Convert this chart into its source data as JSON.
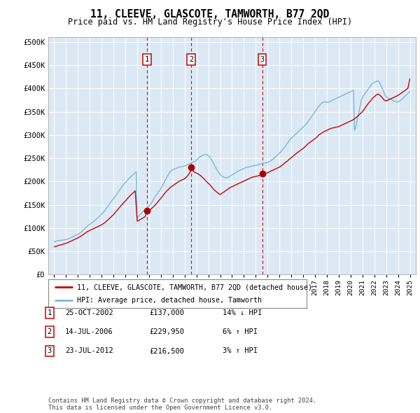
{
  "title": "11, CLEEVE, GLASCOTE, TAMWORTH, B77 2QD",
  "subtitle": "Price paid vs. HM Land Registry's House Price Index (HPI)",
  "red_line_label": "11, CLEEVE, GLASCOTE, TAMWORTH, B77 2QD (detached house)",
  "blue_line_label": "HPI: Average price, detached house, Tamworth",
  "footer": "Contains HM Land Registry data © Crown copyright and database right 2024.\nThis data is licensed under the Open Government Licence v3.0.",
  "sale_markers": [
    {
      "num": 1,
      "year": 2002.83,
      "price": 137000,
      "label": "25-OCT-2002",
      "amount": "£137,000",
      "pct": "14% ↓ HPI"
    },
    {
      "num": 2,
      "year": 2006.54,
      "price": 229950,
      "label": "14-JUL-2006",
      "amount": "£229,950",
      "pct": "6% ↑ HPI"
    },
    {
      "num": 3,
      "year": 2012.54,
      "price": 216500,
      "label": "23-JUL-2012",
      "amount": "£216,500",
      "pct": "3% ↑ HPI"
    }
  ],
  "ylim": [
    0,
    510000
  ],
  "yticks": [
    0,
    50000,
    100000,
    150000,
    200000,
    250000,
    300000,
    350000,
    400000,
    450000,
    500000
  ],
  "ytick_labels": [
    "£0",
    "£50K",
    "£100K",
    "£150K",
    "£200K",
    "£250K",
    "£300K",
    "£350K",
    "£400K",
    "£450K",
    "£500K"
  ],
  "xlim": [
    1994.5,
    2025.5
  ],
  "hpi_x": [
    1995.0,
    1995.08,
    1995.17,
    1995.25,
    1995.33,
    1995.42,
    1995.5,
    1995.58,
    1995.67,
    1995.75,
    1995.83,
    1995.92,
    1996.0,
    1996.08,
    1996.17,
    1996.25,
    1996.33,
    1996.42,
    1996.5,
    1996.58,
    1996.67,
    1996.75,
    1996.83,
    1996.92,
    1997.0,
    1997.08,
    1997.17,
    1997.25,
    1997.33,
    1997.42,
    1997.5,
    1997.58,
    1997.67,
    1997.75,
    1997.83,
    1997.92,
    1998.0,
    1998.08,
    1998.17,
    1998.25,
    1998.33,
    1998.42,
    1998.5,
    1998.58,
    1998.67,
    1998.75,
    1998.83,
    1998.92,
    1999.0,
    1999.08,
    1999.17,
    1999.25,
    1999.33,
    1999.42,
    1999.5,
    1999.58,
    1999.67,
    1999.75,
    1999.83,
    1999.92,
    2000.0,
    2000.08,
    2000.17,
    2000.25,
    2000.33,
    2000.42,
    2000.5,
    2000.58,
    2000.67,
    2000.75,
    2000.83,
    2000.92,
    2001.0,
    2001.08,
    2001.17,
    2001.25,
    2001.33,
    2001.42,
    2001.5,
    2001.58,
    2001.67,
    2001.75,
    2001.83,
    2001.92,
    2002.0,
    2002.08,
    2002.17,
    2002.25,
    2002.33,
    2002.42,
    2002.5,
    2002.58,
    2002.67,
    2002.75,
    2002.83,
    2002.92,
    2003.0,
    2003.08,
    2003.17,
    2003.25,
    2003.33,
    2003.42,
    2003.5,
    2003.58,
    2003.67,
    2003.75,
    2003.83,
    2003.92,
    2004.0,
    2004.08,
    2004.17,
    2004.25,
    2004.33,
    2004.42,
    2004.5,
    2004.58,
    2004.67,
    2004.75,
    2004.83,
    2004.92,
    2005.0,
    2005.08,
    2005.17,
    2005.25,
    2005.33,
    2005.42,
    2005.5,
    2005.58,
    2005.67,
    2005.75,
    2005.83,
    2005.92,
    2006.0,
    2006.08,
    2006.17,
    2006.25,
    2006.33,
    2006.42,
    2006.5,
    2006.58,
    2006.67,
    2006.75,
    2006.83,
    2006.92,
    2007.0,
    2007.08,
    2007.17,
    2007.25,
    2007.33,
    2007.42,
    2007.5,
    2007.58,
    2007.67,
    2007.75,
    2007.83,
    2007.92,
    2008.0,
    2008.08,
    2008.17,
    2008.25,
    2008.33,
    2008.42,
    2008.5,
    2008.58,
    2008.67,
    2008.75,
    2008.83,
    2008.92,
    2009.0,
    2009.08,
    2009.17,
    2009.25,
    2009.33,
    2009.42,
    2009.5,
    2009.58,
    2009.67,
    2009.75,
    2009.83,
    2009.92,
    2010.0,
    2010.08,
    2010.17,
    2010.25,
    2010.33,
    2010.42,
    2010.5,
    2010.58,
    2010.67,
    2010.75,
    2010.83,
    2010.92,
    2011.0,
    2011.08,
    2011.17,
    2011.25,
    2011.33,
    2011.42,
    2011.5,
    2011.58,
    2011.67,
    2011.75,
    2011.83,
    2011.92,
    2012.0,
    2012.08,
    2012.17,
    2012.25,
    2012.33,
    2012.42,
    2012.5,
    2012.58,
    2012.67,
    2012.75,
    2012.83,
    2012.92,
    2013.0,
    2013.08,
    2013.17,
    2013.25,
    2013.33,
    2013.42,
    2013.5,
    2013.58,
    2013.67,
    2013.75,
    2013.83,
    2013.92,
    2014.0,
    2014.08,
    2014.17,
    2014.25,
    2014.33,
    2014.42,
    2014.5,
    2014.58,
    2014.67,
    2014.75,
    2014.83,
    2014.92,
    2015.0,
    2015.08,
    2015.17,
    2015.25,
    2015.33,
    2015.42,
    2015.5,
    2015.58,
    2015.67,
    2015.75,
    2015.83,
    2015.92,
    2016.0,
    2016.08,
    2016.17,
    2016.25,
    2016.33,
    2016.42,
    2016.5,
    2016.58,
    2016.67,
    2016.75,
    2016.83,
    2016.92,
    2017.0,
    2017.08,
    2017.17,
    2017.25,
    2017.33,
    2017.42,
    2017.5,
    2017.58,
    2017.67,
    2017.75,
    2017.83,
    2017.92,
    2018.0,
    2018.08,
    2018.17,
    2018.25,
    2018.33,
    2018.42,
    2018.5,
    2018.58,
    2018.67,
    2018.75,
    2018.83,
    2018.92,
    2019.0,
    2019.08,
    2019.17,
    2019.25,
    2019.33,
    2019.42,
    2019.5,
    2019.58,
    2019.67,
    2019.75,
    2019.83,
    2019.92,
    2020.0,
    2020.08,
    2020.17,
    2020.25,
    2020.33,
    2020.42,
    2020.5,
    2020.58,
    2020.67,
    2020.75,
    2020.83,
    2020.92,
    2021.0,
    2021.08,
    2021.17,
    2021.25,
    2021.33,
    2021.42,
    2021.5,
    2021.58,
    2021.67,
    2021.75,
    2021.83,
    2021.92,
    2022.0,
    2022.08,
    2022.17,
    2022.25,
    2022.33,
    2022.42,
    2022.5,
    2022.58,
    2022.67,
    2022.75,
    2022.83,
    2022.92,
    2023.0,
    2023.08,
    2023.17,
    2023.25,
    2023.33,
    2023.42,
    2023.5,
    2023.58,
    2023.67,
    2023.75,
    2023.83,
    2023.92,
    2024.0,
    2024.08,
    2024.17,
    2024.25,
    2024.33,
    2024.42,
    2024.5,
    2024.58,
    2024.67,
    2024.75,
    2024.83,
    2024.92,
    2025.0
  ],
  "hpi_y": [
    71000,
    71500,
    72000,
    72500,
    73000,
    73200,
    73500,
    73800,
    74000,
    74200,
    74500,
    75000,
    75500,
    76000,
    76800,
    77500,
    78500,
    79500,
    80500,
    81500,
    82500,
    83500,
    84500,
    85500,
    86500,
    88000,
    89500,
    91000,
    93000,
    95000,
    97000,
    99000,
    101000,
    103000,
    105000,
    107000,
    108000,
    109500,
    111000,
    112500,
    114000,
    116000,
    118000,
    120000,
    122000,
    124000,
    126000,
    128000,
    130000,
    132000,
    134500,
    137000,
    140000,
    143000,
    146000,
    149000,
    152000,
    155000,
    158000,
    161000,
    163000,
    166000,
    169000,
    172000,
    175000,
    178000,
    181000,
    184000,
    187000,
    190000,
    193000,
    196000,
    198000,
    200000,
    202000,
    205000,
    207000,
    209000,
    211000,
    213000,
    215000,
    217000,
    219000,
    221000,
    122000,
    124000,
    126500,
    129000,
    131500,
    134000,
    136000,
    138000,
    140000,
    142000,
    143500,
    145000,
    147000,
    150000,
    153000,
    156000,
    160000,
    164000,
    167000,
    170000,
    173000,
    176000,
    179000,
    182000,
    185000,
    189000,
    193000,
    197000,
    201000,
    205000,
    209000,
    213000,
    217000,
    220000,
    222000,
    224000,
    225000,
    226000,
    227000,
    228000,
    229000,
    230000,
    230500,
    231000,
    231500,
    232000,
    232500,
    233000,
    233500,
    234000,
    235000,
    236000,
    237000,
    238000,
    239000,
    240000,
    241000,
    242000,
    243000,
    244000,
    246000,
    248000,
    250000,
    252000,
    254000,
    255000,
    256000,
    257000,
    257500,
    258000,
    258000,
    257500,
    256000,
    254000,
    251000,
    248000,
    244000,
    240000,
    236000,
    232000,
    228000,
    224000,
    221000,
    218000,
    215000,
    213000,
    211000,
    210000,
    209000,
    208500,
    208000,
    208500,
    209000,
    210000,
    211500,
    213000,
    214000,
    215500,
    217000,
    218000,
    219500,
    221000,
    222000,
    223000,
    224000,
    225000,
    226000,
    227000,
    228000,
    229000,
    230000,
    230500,
    231000,
    231500,
    232000,
    232500,
    233000,
    233500,
    234000,
    234500,
    235000,
    235500,
    236000,
    236500,
    237000,
    237500,
    238000,
    238500,
    239000,
    239500,
    240000,
    240500,
    241000,
    242000,
    243000,
    244500,
    246000,
    247500,
    249000,
    251000,
    253000,
    255000,
    257000,
    259000,
    261000,
    263000,
    265500,
    268000,
    270500,
    273000,
    276000,
    279000,
    282000,
    285000,
    288000,
    291000,
    293000,
    295000,
    297000,
    299000,
    301000,
    303000,
    305000,
    307000,
    309000,
    311000,
    313000,
    315000,
    317000,
    319000,
    321000,
    323000,
    326000,
    329000,
    332000,
    335000,
    338000,
    341000,
    344000,
    347000,
    350000,
    353000,
    356000,
    359000,
    362000,
    365000,
    367000,
    369000,
    370000,
    371000,
    371000,
    370500,
    370000,
    370500,
    371000,
    372000,
    373000,
    374000,
    375000,
    376000,
    377000,
    378000,
    379000,
    380000,
    381000,
    382000,
    383000,
    384000,
    385000,
    386000,
    387000,
    388000,
    389000,
    390000,
    391000,
    392000,
    393000,
    394000,
    395000,
    396000,
    310000,
    315000,
    325000,
    335000,
    345000,
    355000,
    365000,
    375000,
    380000,
    385000,
    387000,
    390000,
    393000,
    396000,
    399000,
    402000,
    405000,
    408000,
    410000,
    412000,
    413000,
    414000,
    415000,
    415500,
    416000,
    413000,
    410000,
    405000,
    400000,
    395000,
    390000,
    385000,
    382000,
    380000,
    379000,
    378000,
    377000,
    376000,
    375000,
    374000,
    373000,
    372000,
    371500,
    371000,
    371000,
    372000,
    373500,
    375000,
    377000,
    379000,
    381000,
    383000,
    385000,
    387000,
    389000,
    391000,
    393000
  ],
  "red_x": [
    1995.0,
    1995.17,
    1995.33,
    1995.5,
    1995.67,
    1995.83,
    1996.0,
    1996.17,
    1996.33,
    1996.5,
    1996.67,
    1996.83,
    1997.0,
    1997.17,
    1997.33,
    1997.5,
    1997.67,
    1997.83,
    1998.0,
    1998.17,
    1998.33,
    1998.5,
    1998.67,
    1998.83,
    1999.0,
    1999.17,
    1999.33,
    1999.5,
    1999.67,
    1999.83,
    2000.0,
    2000.17,
    2000.33,
    2000.5,
    2000.67,
    2000.83,
    2001.0,
    2001.17,
    2001.33,
    2001.5,
    2001.67,
    2001.83,
    2002.0,
    2002.17,
    2002.33,
    2002.5,
    2002.67,
    2002.83,
    2003.0,
    2003.17,
    2003.33,
    2003.5,
    2003.67,
    2003.83,
    2004.0,
    2004.17,
    2004.33,
    2004.5,
    2004.67,
    2004.83,
    2005.0,
    2005.17,
    2005.33,
    2005.5,
    2005.67,
    2005.83,
    2006.0,
    2006.17,
    2006.33,
    2006.5,
    2006.54,
    2006.67,
    2006.83,
    2007.0,
    2007.17,
    2007.33,
    2007.5,
    2007.67,
    2007.83,
    2008.0,
    2008.17,
    2008.33,
    2008.5,
    2008.67,
    2008.83,
    2009.0,
    2009.17,
    2009.33,
    2009.5,
    2009.67,
    2009.83,
    2010.0,
    2010.17,
    2010.33,
    2010.5,
    2010.67,
    2010.83,
    2011.0,
    2011.17,
    2011.33,
    2011.5,
    2011.67,
    2011.83,
    2012.0,
    2012.17,
    2012.33,
    2012.5,
    2012.54,
    2012.67,
    2012.83,
    2013.0,
    2013.17,
    2013.33,
    2013.5,
    2013.67,
    2013.83,
    2014.0,
    2014.17,
    2014.33,
    2014.5,
    2014.67,
    2014.83,
    2015.0,
    2015.17,
    2015.33,
    2015.5,
    2015.67,
    2015.83,
    2016.0,
    2016.17,
    2016.33,
    2016.5,
    2016.67,
    2016.83,
    2017.0,
    2017.17,
    2017.33,
    2017.5,
    2017.67,
    2017.83,
    2018.0,
    2018.17,
    2018.33,
    2018.5,
    2018.67,
    2018.83,
    2019.0,
    2019.17,
    2019.33,
    2019.5,
    2019.67,
    2019.83,
    2020.0,
    2020.17,
    2020.33,
    2020.5,
    2020.67,
    2020.83,
    2021.0,
    2021.17,
    2021.33,
    2021.5,
    2021.67,
    2021.83,
    2022.0,
    2022.17,
    2022.33,
    2022.5,
    2022.67,
    2022.83,
    2023.0,
    2023.17,
    2023.33,
    2023.5,
    2023.67,
    2023.83,
    2024.0,
    2024.17,
    2024.33,
    2024.5,
    2024.67,
    2024.83,
    2025.0
  ],
  "red_y": [
    60000,
    61000,
    62500,
    63500,
    65000,
    66000,
    67500,
    69000,
    71000,
    73000,
    75000,
    77000,
    79000,
    81500,
    84000,
    87000,
    90000,
    93000,
    95000,
    97000,
    99000,
    101000,
    103000,
    105000,
    107000,
    110000,
    113000,
    117000,
    121000,
    125000,
    129000,
    134000,
    139000,
    144000,
    149000,
    154000,
    158000,
    163000,
    168000,
    172000,
    176000,
    180000,
    115000,
    117000,
    119500,
    122000,
    124500,
    137000,
    138000,
    141000,
    145000,
    149000,
    154000,
    159000,
    164000,
    170000,
    175000,
    180000,
    184000,
    188000,
    191000,
    194000,
    197000,
    200000,
    202000,
    204000,
    206000,
    210000,
    215000,
    222000,
    229950,
    224000,
    220000,
    218000,
    216000,
    213000,
    209000,
    205000,
    200000,
    196000,
    192000,
    187000,
    182000,
    178000,
    175000,
    172000,
    175000,
    178000,
    181000,
    184000,
    187000,
    189000,
    191000,
    193000,
    195000,
    197000,
    199000,
    201000,
    203000,
    205000,
    207000,
    209000,
    210000,
    211000,
    212000,
    213000,
    215000,
    216500,
    217000,
    218000,
    219000,
    221000,
    223000,
    225000,
    227000,
    229000,
    231000,
    234000,
    237000,
    241000,
    244000,
    248000,
    251000,
    255000,
    258000,
    262000,
    265000,
    268000,
    271000,
    275000,
    279000,
    283000,
    286000,
    289000,
    292000,
    296000,
    300000,
    303000,
    306000,
    308000,
    310000,
    312000,
    314000,
    315000,
    316000,
    317000,
    318000,
    320000,
    322000,
    324000,
    326000,
    328000,
    330000,
    332000,
    335000,
    338000,
    342000,
    346000,
    350000,
    356000,
    362000,
    368000,
    373000,
    378000,
    382000,
    386000,
    388000,
    385000,
    380000,
    375000,
    373000,
    375000,
    377000,
    379000,
    381000,
    383000,
    385000,
    388000,
    391000,
    394000,
    397000,
    400000,
    420000
  ]
}
